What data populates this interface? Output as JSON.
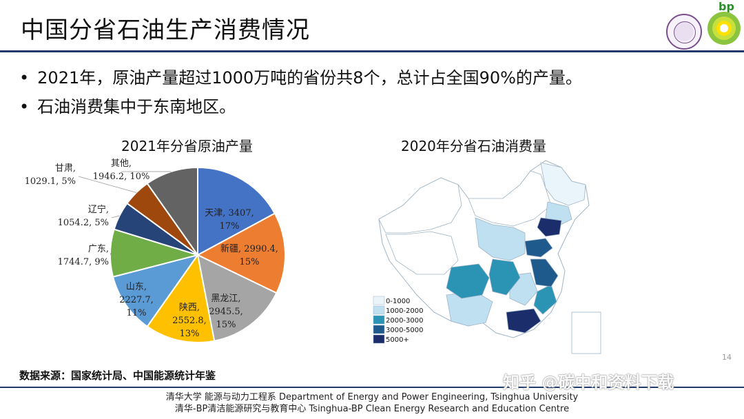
{
  "slide": {
    "title": "中国分省石油生产消费情况",
    "bp_text": "bp",
    "bullets": [
      "2021年，原油产量超过1000万吨的省份共8个，总计占全国90%的产量。",
      "石油消费集中于东南地区。"
    ],
    "source": "数据来源：国家统计局、中国能源统计年鉴",
    "footer": [
      "清华大学 能源与动力工程系 Department of Energy and Power Engineering, Tsinghua University",
      "清华-BP清洁能源研究与教育中心 Tsinghua-BP Clean Energy Research and Education Centre"
    ],
    "page_number": "14",
    "watermark": "知乎 @碳中和资料下载"
  },
  "chart_data": [
    {
      "type": "pie",
      "title": "2021年分省原油产量",
      "slices": [
        {
          "name": "天津",
          "value": 3407,
          "value_label": "3407,",
          "percent_label": "17%",
          "color": "#4472c4"
        },
        {
          "name": "新疆",
          "value": 2990.4,
          "value_label": "2990.4,",
          "percent_label": "15%",
          "color": "#ed7d31"
        },
        {
          "name": "黑龙江",
          "value": 2945.5,
          "value_label": "2945.5,",
          "percent_label": "15%",
          "color": "#a5a5a5"
        },
        {
          "name": "陕西",
          "value": 2552.8,
          "value_label": "2552.8,",
          "percent_label": "13%",
          "color": "#ffc000"
        },
        {
          "name": "山东",
          "value": 2227.7,
          "value_label": "2227.7,",
          "percent_label": "11%",
          "color": "#5b9bd5"
        },
        {
          "name": "广东",
          "value": 1744.7,
          "value_label": "1744.7,",
          "percent_label": "9%",
          "color": "#70ad47"
        },
        {
          "name": "辽宁",
          "value": 1054.2,
          "value_label": "1054.2,",
          "percent_label": "5%",
          "color": "#264478"
        },
        {
          "name": "甘肃",
          "value": 1029.1,
          "value_label": "1029.1,",
          "percent_label": "5%",
          "color": "#9e480e"
        },
        {
          "name": "其他",
          "value": 1946.2,
          "value_label": "1946.2,",
          "percent_label": "10%",
          "color": "#636363"
        }
      ]
    },
    {
      "type": "heatmap",
      "title": "2020年分省石油消费量",
      "legend": [
        {
          "label": "0-1000",
          "color": "#eaf4fb"
        },
        {
          "label": "1000-2000",
          "color": "#bfe0f1"
        },
        {
          "label": "2000-3000",
          "color": "#2b93b4"
        },
        {
          "label": "3000-5000",
          "color": "#1f5a8c"
        },
        {
          "label": "5000+",
          "color": "#1b2d6b"
        }
      ]
    }
  ]
}
